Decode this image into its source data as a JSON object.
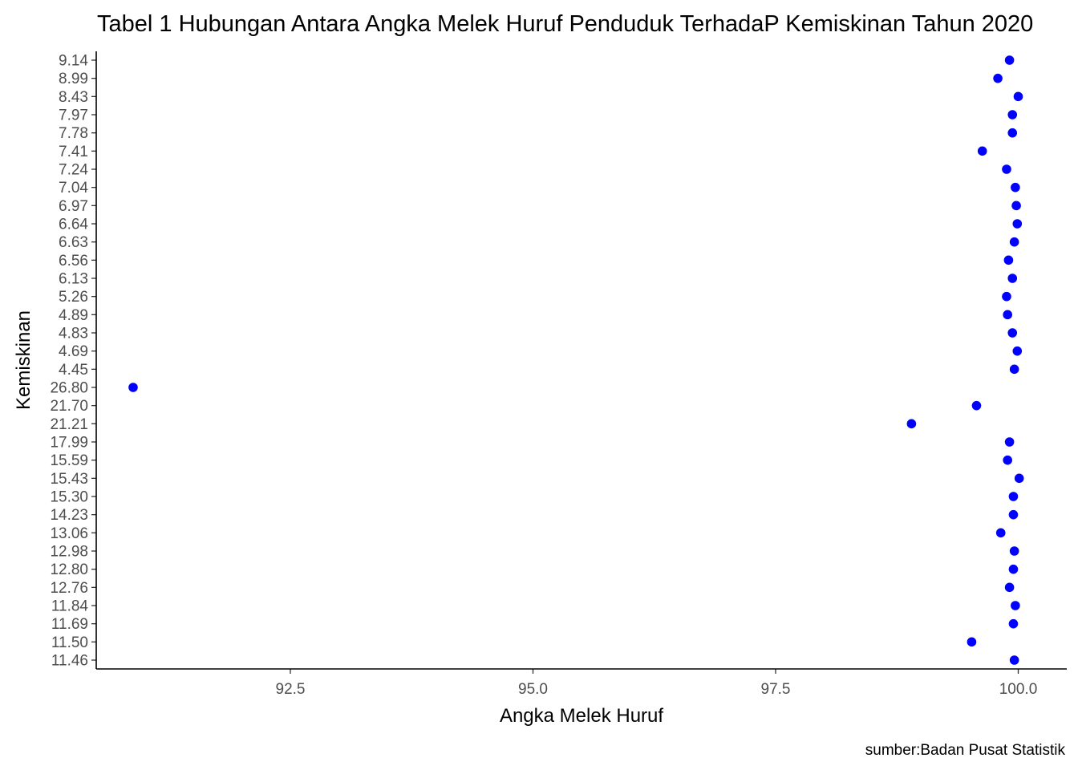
{
  "chart_data": {
    "type": "scatter",
    "title": "Tabel 1 Hubungan Antara Angka Melek Huruf Penduduk TerhadaP Kemiskinan Tahun 2020",
    "xlabel": "Angka Melek Huruf",
    "ylabel": "Kemiskinan",
    "caption": "sumber:Badan Pusat Statistik",
    "point_color": "#0000ff",
    "grid": false,
    "xlim": [
      90.5,
      100.5
    ],
    "x_ticks": [
      92.5,
      95.0,
      97.5,
      100.0
    ],
    "x_tick_labels": [
      "92.5",
      "95.0",
      "97.5",
      "100.0"
    ],
    "y_categories": [
      "11.46",
      "11.50",
      "11.69",
      "11.84",
      "12.76",
      "12.80",
      "12.98",
      "13.06",
      "14.23",
      "15.30",
      "15.43",
      "15.59",
      "17.99",
      "21.21",
      "21.70",
      "26.80",
      "4.45",
      "4.69",
      "4.83",
      "4.89",
      "5.26",
      "6.13",
      "6.56",
      "6.63",
      "6.64",
      "6.97",
      "7.04",
      "7.24",
      "7.41",
      "7.78",
      "7.97",
      "8.43",
      "8.99",
      "9.14"
    ],
    "points": [
      {
        "y": "11.46",
        "x": 99.96
      },
      {
        "y": "11.50",
        "x": 99.52
      },
      {
        "y": "11.69",
        "x": 99.95
      },
      {
        "y": "11.84",
        "x": 99.97
      },
      {
        "y": "12.76",
        "x": 99.91
      },
      {
        "y": "12.80",
        "x": 99.95
      },
      {
        "y": "12.98",
        "x": 99.96
      },
      {
        "y": "13.06",
        "x": 99.82
      },
      {
        "y": "14.23",
        "x": 99.95
      },
      {
        "y": "15.30",
        "x": 99.95
      },
      {
        "y": "15.43",
        "x": 100.01
      },
      {
        "y": "15.59",
        "x": 99.89
      },
      {
        "y": "17.99",
        "x": 99.91
      },
      {
        "y": "21.21",
        "x": 98.9
      },
      {
        "y": "21.70",
        "x": 99.57
      },
      {
        "y": "26.80",
        "x": 90.88
      },
      {
        "y": "4.45",
        "x": 99.96
      },
      {
        "y": "4.69",
        "x": 99.99
      },
      {
        "y": "4.83",
        "x": 99.94
      },
      {
        "y": "4.89",
        "x": 99.89
      },
      {
        "y": "5.26",
        "x": 99.88
      },
      {
        "y": "6.13",
        "x": 99.94
      },
      {
        "y": "6.56",
        "x": 99.9
      },
      {
        "y": "6.63",
        "x": 99.96
      },
      {
        "y": "6.64",
        "x": 99.99
      },
      {
        "y": "6.97",
        "x": 99.98
      },
      {
        "y": "7.04",
        "x": 99.97
      },
      {
        "y": "7.24",
        "x": 99.88
      },
      {
        "y": "7.41",
        "x": 99.63
      },
      {
        "y": "7.78",
        "x": 99.94
      },
      {
        "y": "7.97",
        "x": 99.94
      },
      {
        "y": "8.43",
        "x": 100.0
      },
      {
        "y": "8.99",
        "x": 99.79
      },
      {
        "y": "9.14",
        "x": 99.91
      }
    ]
  }
}
